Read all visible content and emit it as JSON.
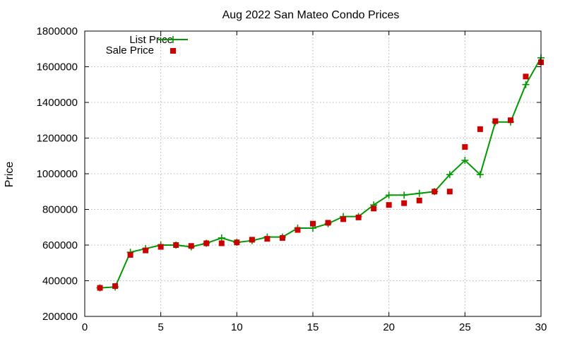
{
  "chart_data": {
    "type": "line",
    "title": "Aug 2022 San Mateo Condo Prices",
    "xlabel": "",
    "ylabel": "Price",
    "xlim": [
      0,
      30
    ],
    "ylim": [
      200000,
      1800000
    ],
    "x_ticks": [
      "0",
      "5",
      "10",
      "15",
      "20",
      "25",
      "30"
    ],
    "y_ticks": [
      "200000",
      "400000",
      "600000",
      "800000",
      "1000000",
      "1200000",
      "1400000",
      "1600000",
      "1800000"
    ],
    "grid": true,
    "legend_position": "top-left",
    "x": [
      1,
      2,
      3,
      4,
      5,
      6,
      7,
      8,
      9,
      10,
      11,
      12,
      13,
      14,
      15,
      16,
      17,
      18,
      19,
      20,
      21,
      22,
      23,
      24,
      25,
      26,
      27,
      28,
      29,
      30
    ],
    "series": [
      {
        "name": "List Price",
        "style": "line+cross",
        "color": "#009900",
        "values": [
          360000,
          365000,
          560000,
          580000,
          600000,
          600000,
          590000,
          610000,
          640000,
          615000,
          625000,
          645000,
          645000,
          695000,
          695000,
          720000,
          760000,
          760000,
          825000,
          880000,
          880000,
          890000,
          900000,
          995000,
          1075000,
          995000,
          1290000,
          1290000,
          1500000,
          1650000
        ]
      },
      {
        "name": "Sale Price",
        "style": "square",
        "color": "#cc0000",
        "values": [
          360000,
          370000,
          545000,
          570000,
          590000,
          600000,
          595000,
          610000,
          610000,
          615000,
          630000,
          635000,
          640000,
          685000,
          720000,
          725000,
          745000,
          755000,
          805000,
          825000,
          835000,
          850000,
          900000,
          900000,
          1150000,
          1250000,
          1295000,
          1300000,
          1545000,
          1625000
        ]
      }
    ]
  }
}
